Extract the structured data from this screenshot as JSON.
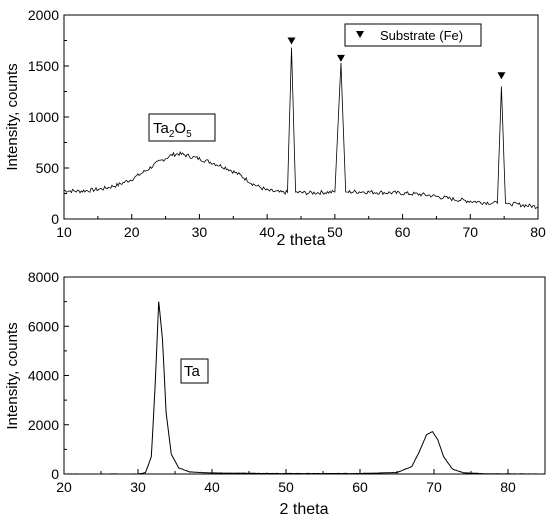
{
  "chart_data": [
    {
      "type": "line",
      "xlabel": "2 theta",
      "ylabel": "Intensity, counts",
      "xlim": [
        10,
        80
      ],
      "ylim": [
        0,
        2000
      ],
      "xticks": [
        10,
        20,
        30,
        40,
        50,
        60,
        70,
        80
      ],
      "yticks": [
        0,
        500,
        1000,
        1500,
        2000
      ],
      "grid": false,
      "legend": "top-right",
      "series": [
        {
          "points": [
            [
              10,
              280
            ],
            [
              12,
              272
            ],
            [
              14,
              282
            ],
            [
              16,
              300
            ],
            [
              18,
              335
            ],
            [
              20,
              390
            ],
            [
              22,
              470
            ],
            [
              24,
              560
            ],
            [
              26,
              630
            ],
            [
              27,
              640
            ],
            [
              28,
              625
            ],
            [
              30,
              590
            ],
            [
              32,
              550
            ],
            [
              34,
              500
            ],
            [
              36,
              430
            ],
            [
              38,
              340
            ],
            [
              40,
              280
            ],
            [
              42,
              260
            ],
            [
              43,
              262
            ],
            [
              43.6,
              1680
            ],
            [
              44.2,
              262
            ],
            [
              46,
              255
            ],
            [
              48,
              260
            ],
            [
              50,
              265
            ],
            [
              50.9,
              1530
            ],
            [
              51.6,
              265
            ],
            [
              52,
              265
            ],
            [
              54,
              268
            ],
            [
              56,
              262
            ],
            [
              58,
              258
            ],
            [
              60,
              252
            ],
            [
              62,
              245
            ],
            [
              64,
              232
            ],
            [
              66,
              210
            ],
            [
              68,
              190
            ],
            [
              70,
              175
            ],
            [
              72,
              162
            ],
            [
              74,
              155
            ],
            [
              74.6,
              1300
            ],
            [
              75.2,
              155
            ],
            [
              76,
              150
            ],
            [
              78,
              135
            ],
            [
              80,
              120
            ]
          ]
        }
      ],
      "markers": [
        {
          "x": 43.6,
          "y": 1740
        },
        {
          "x": 50.9,
          "y": 1570
        },
        {
          "x": 74.6,
          "y": 1400
        }
      ],
      "legend_entries": [
        "Substrate (Fe)"
      ],
      "annotation": {
        "base": "Ta",
        "sub1": "2",
        "mid": "O",
        "sub2": "5",
        "x": 29,
        "y": 890
      }
    },
    {
      "type": "line",
      "xlabel": "2 theta",
      "ylabel": "Intensity, counts",
      "xlim": [
        20,
        85
      ],
      "ylim": [
        0,
        8000
      ],
      "xticks": [
        20,
        30,
        40,
        50,
        60,
        70,
        80
      ],
      "yticks": [
        0,
        2000,
        4000,
        6000,
        8000
      ],
      "grid": false,
      "series": [
        {
          "points": [
            [
              20,
              0
            ],
            [
              30,
              0
            ],
            [
              31,
              50
            ],
            [
              31.8,
              700
            ],
            [
              32.3,
              3500
            ],
            [
              32.8,
              7000
            ],
            [
              33.3,
              5500
            ],
            [
              33.8,
              2500
            ],
            [
              34.5,
              800
            ],
            [
              35.5,
              250
            ],
            [
              37,
              80
            ],
            [
              40,
              40
            ],
            [
              50,
              20
            ],
            [
              60,
              20
            ],
            [
              65,
              60
            ],
            [
              67,
              300
            ],
            [
              68,
              900
            ],
            [
              69,
              1600
            ],
            [
              69.8,
              1720
            ],
            [
              70.5,
              1400
            ],
            [
              71.3,
              700
            ],
            [
              72.5,
              200
            ],
            [
              74,
              50
            ],
            [
              77,
              10
            ],
            [
              85,
              0
            ]
          ]
        }
      ],
      "annotation": {
        "text": "Ta",
        "x": 37.5,
        "y": 4050
      }
    }
  ]
}
